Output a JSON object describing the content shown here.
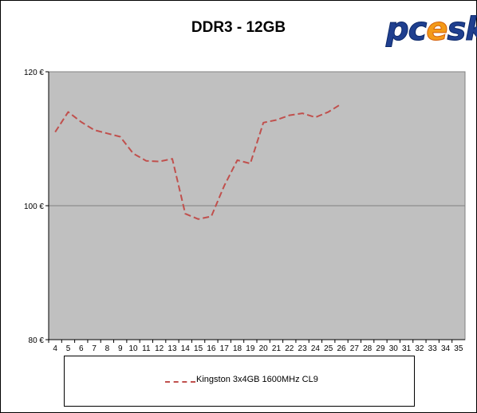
{
  "logo_text": "pcesk",
  "chart_data": {
    "type": "line",
    "title": "DDR3 - 12GB",
    "xlabel": "",
    "ylabel": "",
    "x_ticks": [
      "4",
      "5",
      "6",
      "7",
      "8",
      "9",
      "10",
      "11",
      "12",
      "13",
      "14",
      "15",
      "16",
      "17",
      "18",
      "19",
      "20",
      "21",
      "22",
      "23",
      "24",
      "25",
      "26",
      "27",
      "28",
      "29",
      "30",
      "31",
      "32",
      "33",
      "34",
      "35"
    ],
    "y_ticks": [
      "80 €",
      "100 €",
      "120 €"
    ],
    "ylim": [
      80,
      120
    ],
    "grid": "horizontal major lines",
    "legend_position": "bottom",
    "series": [
      {
        "name": "Kingston 3x4GB 1600MHz CL9",
        "color": "#c0504d",
        "style": "dashed",
        "x": [
          4,
          5,
          6,
          7,
          8,
          9,
          10,
          11,
          12,
          13,
          14,
          15,
          16,
          17,
          18,
          19,
          20,
          21,
          22,
          23,
          24,
          25,
          26
        ],
        "values": [
          111,
          114,
          112.5,
          111.3,
          110.8,
          110.3,
          107.8,
          106.7,
          106.6,
          107,
          98.8,
          98,
          98.4,
          103,
          106.8,
          106.3,
          112.4,
          112.8,
          113.5,
          113.8,
          113.2,
          114,
          115.2
        ]
      }
    ]
  }
}
